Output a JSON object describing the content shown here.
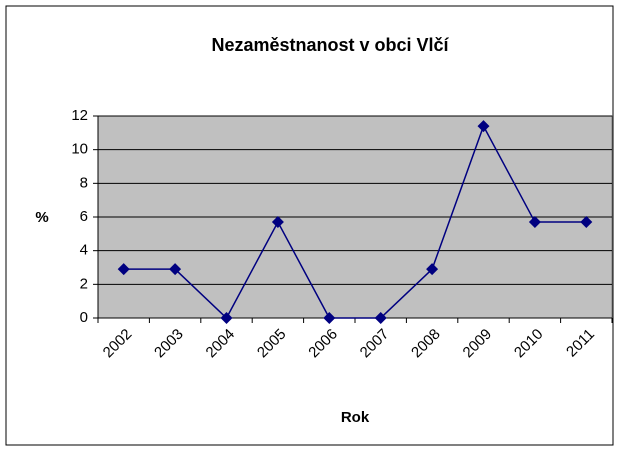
{
  "chart_data": {
    "type": "line",
    "title": "Nezaměstnanost v obci Vlčí",
    "x_label": "Rok",
    "y_label": "%",
    "categories": [
      "2002",
      "2003",
      "2004",
      "2005",
      "2006",
      "2007",
      "2008",
      "2009",
      "2010",
      "2011"
    ],
    "series": [
      {
        "name": "Nezaměstnanost",
        "color": "#000080",
        "values": [
          2.9,
          2.9,
          0,
          5.7,
          0,
          0,
          2.9,
          11.4,
          5.7,
          5.7
        ]
      }
    ],
    "ylim": [
      0,
      12
    ],
    "yticks": [
      0,
      2,
      4,
      6,
      8,
      10,
      12
    ],
    "grid": true,
    "plot_background": "#c0c0c0"
  }
}
